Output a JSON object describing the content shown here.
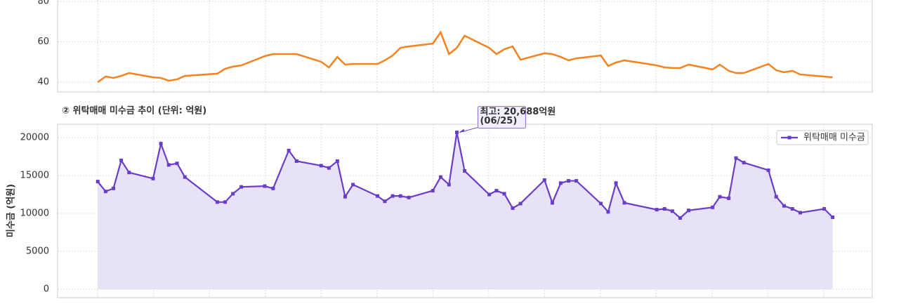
{
  "chart_data": [
    {
      "type": "line",
      "color": "#f5821f",
      "x": [
        0,
        1.4,
        2.8,
        4.2,
        5.6,
        9.9,
        11.3,
        12.7,
        14.2,
        15.6,
        21.4,
        22.8,
        24.2,
        25.7,
        29.9,
        31.4,
        34.2,
        35.6,
        40.0,
        41.4,
        42.9,
        44.3,
        45.7,
        50.1,
        51.4,
        52.8,
        54.2,
        55.7,
        60.0,
        61.4,
        62.9,
        64.3,
        65.7,
        70.1,
        71.4,
        72.8,
        74.3,
        75.7,
        80.0,
        81.4,
        82.9,
        84.3,
        85.7,
        90.1,
        91.4,
        92.8,
        94.3,
        100.1,
        101.5,
        102.9,
        104.3,
        105.8,
        110.1,
        111.4,
        113.0,
        114.3,
        115.7,
        120.1,
        121.5,
        122.9,
        124.4,
        125.8,
        130.1,
        131.6
      ],
      "values": [
        40.0,
        42.8,
        42.1,
        43.1,
        44.5,
        42.4,
        42.1,
        40.7,
        41.4,
        43.1,
        44.2,
        46.6,
        47.7,
        48.3,
        52.9,
        53.9,
        53.9,
        53.9,
        50.1,
        47.3,
        52.5,
        48.7,
        49.0,
        49.0,
        50.8,
        53.2,
        57.0,
        57.7,
        59.1,
        64.7,
        53.9,
        57.0,
        63.0,
        57.0,
        53.9,
        56.3,
        57.7,
        51.1,
        54.3,
        53.9,
        52.5,
        50.8,
        51.8,
        53.2,
        48.0,
        49.7,
        50.8,
        48.3,
        47.3,
        47.0,
        47.0,
        48.7,
        46.3,
        48.7,
        45.6,
        44.5,
        44.5,
        49.0,
        45.9,
        44.9,
        45.6,
        43.8,
        42.8,
        42.4
      ],
      "xlim": [
        -7.2,
        138.7
      ],
      "xticks": [
        0,
        10,
        20,
        30,
        40,
        50,
        60,
        70,
        80,
        90,
        100,
        110,
        120,
        130
      ],
      "ylim": [
        35.13,
        82
      ],
      "yticks": [
        40,
        60,
        80
      ],
      "grid": true
    },
    {
      "type": "area",
      "title": "② 위탁매매 미수금 추이 (단위: 억원)",
      "y_label": "미수금 (억원)",
      "x": [
        0,
        1.4,
        2.8,
        4.2,
        5.6,
        9.9,
        11.3,
        12.7,
        14.2,
        15.6,
        21.4,
        22.8,
        24.2,
        25.7,
        29.9,
        31.4,
        34.2,
        35.6,
        40.0,
        41.4,
        42.9,
        44.3,
        45.7,
        50.1,
        51.4,
        52.8,
        54.2,
        55.7,
        60.0,
        61.4,
        62.9,
        64.3,
        65.7,
        70.1,
        71.4,
        72.8,
        74.3,
        75.7,
        80.0,
        81.4,
        82.9,
        84.3,
        85.7,
        90.1,
        91.4,
        92.8,
        94.3,
        100.1,
        101.5,
        102.9,
        104.3,
        105.8,
        110.1,
        111.4,
        113.0,
        114.3,
        115.7,
        120.1,
        121.5,
        122.9,
        124.4,
        125.8,
        130.1,
        131.6
      ],
      "series": [
        {
          "name": "위탁매매 미수금",
          "color": "#6a3dc8",
          "fill": "#e6dff5",
          "values": [
            14200,
            12900,
            13300,
            17000,
            15400,
            14600,
            19200,
            16400,
            16600,
            14800,
            11500,
            11500,
            12600,
            13500,
            13600,
            13300,
            18300,
            16900,
            16300,
            16000,
            16900,
            12200,
            13800,
            12300,
            11600,
            12300,
            12300,
            12100,
            13000,
            14800,
            13800,
            20688,
            15600,
            12500,
            13000,
            12600,
            10700,
            11300,
            14400,
            11400,
            14000,
            14300,
            14300,
            11300,
            10200,
            14000,
            11400,
            10500,
            10600,
            10300,
            9400,
            10400,
            10800,
            12200,
            12000,
            17300,
            16700,
            15700,
            12200,
            11000,
            10600,
            10100,
            10600,
            9500
          ]
        }
      ],
      "annotation": [
        "최고: 20,688억원",
        "(06/25)"
      ],
      "xlim": [
        -7.2,
        138.7
      ],
      "xticks": [
        0,
        10,
        20,
        30,
        40,
        50,
        60,
        70,
        80,
        90,
        100,
        110,
        120,
        130
      ],
      "ylim": [
        -1111,
        21759
      ],
      "yticks": [
        0,
        5000,
        10000,
        15000,
        20000
      ],
      "grid": true,
      "legend": "upper right"
    }
  ]
}
